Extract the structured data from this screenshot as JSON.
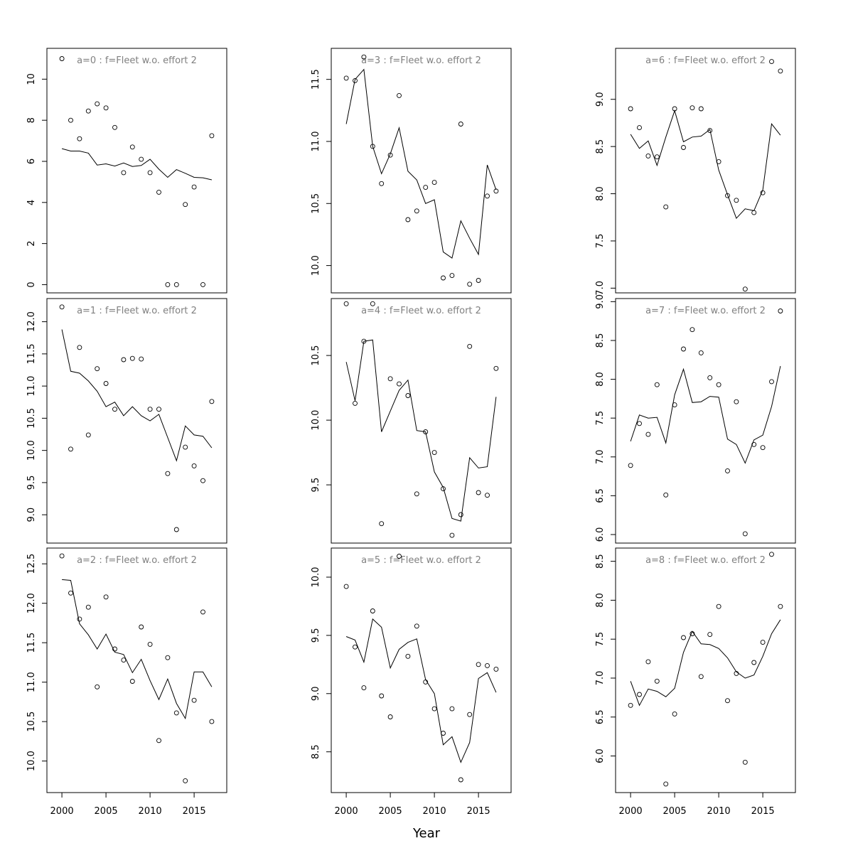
{
  "figure": {
    "xlabel": "Year"
  },
  "chart_data": [
    {
      "type": "scatter",
      "title": "a=0  :  f=Fleet w.o. effort 2",
      "xlim": [
        1998.3,
        2018.7
      ],
      "ylim": [
        -0.4,
        11.5
      ],
      "xticks": [
        2000,
        2005,
        2010,
        2015
      ],
      "yticks": [
        0,
        2,
        4,
        6,
        8,
        10
      ],
      "x": [
        2000,
        2001,
        2002,
        2003,
        2004,
        2005,
        2006,
        2007,
        2008,
        2009,
        2010,
        2011,
        2012,
        2013,
        2014,
        2015,
        2016,
        2017
      ],
      "series": [
        {
          "kind": "points",
          "values": [
            11.0,
            8.0,
            7.1,
            8.45,
            8.8,
            8.6,
            7.65,
            5.45,
            6.7,
            6.1,
            5.45,
            4.5,
            0.0,
            0.0,
            3.9,
            4.75,
            0.0,
            7.25
          ]
        },
        {
          "kind": "line",
          "values": [
            6.62,
            6.5,
            6.5,
            6.4,
            5.82,
            5.88,
            5.77,
            5.92,
            5.75,
            5.8,
            6.1,
            5.62,
            5.22,
            5.6,
            5.42,
            5.22,
            5.2,
            5.1
          ]
        }
      ]
    },
    {
      "type": "scatter",
      "title": "a=1  :  f=Fleet w.o. effort 2",
      "xlim": [
        1998.3,
        2018.7
      ],
      "ylim": [
        8.56,
        12.36
      ],
      "xticks": [
        2000,
        2005,
        2010,
        2015
      ],
      "yticks": [
        9.0,
        9.5,
        10.0,
        10.5,
        11.0,
        11.5,
        12.0
      ],
      "x": [
        2000,
        2001,
        2002,
        2003,
        2004,
        2005,
        2006,
        2007,
        2008,
        2009,
        2010,
        2011,
        2012,
        2013,
        2014,
        2015,
        2016,
        2017
      ],
      "series": [
        {
          "kind": "points",
          "values": [
            12.23,
            10.02,
            11.6,
            10.24,
            11.27,
            11.04,
            10.64,
            11.41,
            11.43,
            11.42,
            10.64,
            10.64,
            9.64,
            8.77,
            10.05,
            9.76,
            9.53,
            10.76
          ]
        },
        {
          "kind": "line",
          "values": [
            11.88,
            11.23,
            11.2,
            11.08,
            10.92,
            10.68,
            10.75,
            10.54,
            10.68,
            10.54,
            10.46,
            10.56,
            10.2,
            9.84,
            10.38,
            10.24,
            10.22,
            10.04
          ]
        }
      ]
    },
    {
      "type": "scatter",
      "title": "a=2  :  f=Fleet w.o. effort 2",
      "xlim": [
        1998.3,
        2018.7
      ],
      "ylim": [
        9.6,
        12.7
      ],
      "xticks": [
        2000,
        2005,
        2010,
        2015
      ],
      "yticks": [
        10.0,
        10.5,
        11.0,
        11.5,
        12.0,
        12.5
      ],
      "x": [
        2000,
        2001,
        2002,
        2003,
        2004,
        2005,
        2006,
        2007,
        2008,
        2009,
        2010,
        2011,
        2012,
        2013,
        2014,
        2015,
        2016,
        2017
      ],
      "series": [
        {
          "kind": "points",
          "values": [
            12.6,
            12.13,
            11.8,
            11.95,
            10.94,
            12.08,
            11.42,
            11.28,
            11.01,
            11.7,
            11.48,
            10.26,
            11.31,
            10.61,
            9.75,
            10.77,
            11.89,
            10.5
          ]
        },
        {
          "kind": "line",
          "values": [
            12.3,
            12.29,
            11.74,
            11.6,
            11.42,
            11.61,
            11.38,
            11.35,
            11.12,
            11.29,
            11.02,
            10.78,
            11.04,
            10.73,
            10.54,
            11.13,
            11.13,
            10.94
          ]
        }
      ]
    },
    {
      "type": "scatter",
      "title": "a=3  :  f=Fleet w.o. effort 2",
      "xlim": [
        1998.3,
        2018.7
      ],
      "ylim": [
        9.78,
        11.75
      ],
      "xticks": [
        2000,
        2005,
        2010,
        2015
      ],
      "yticks": [
        10.0,
        10.5,
        11.0,
        11.5
      ],
      "x": [
        2000,
        2001,
        2002,
        2003,
        2004,
        2005,
        2006,
        2007,
        2008,
        2009,
        2010,
        2011,
        2012,
        2013,
        2014,
        2015,
        2016,
        2017
      ],
      "series": [
        {
          "kind": "points",
          "values": [
            11.51,
            11.49,
            11.68,
            10.96,
            10.66,
            10.89,
            11.37,
            10.37,
            10.44,
            10.63,
            10.67,
            9.9,
            9.92,
            11.14,
            9.85,
            9.88,
            10.56,
            10.6
          ]
        },
        {
          "kind": "line",
          "values": [
            11.14,
            11.5,
            11.58,
            10.96,
            10.74,
            10.9,
            11.11,
            10.76,
            10.69,
            10.5,
            10.53,
            10.11,
            10.06,
            10.36,
            10.22,
            10.09,
            10.81,
            10.61
          ]
        }
      ]
    },
    {
      "type": "scatter",
      "title": "a=4  :  f=Fleet w.o. effort 2",
      "xlim": [
        1998.3,
        2018.7
      ],
      "ylim": [
        9.05,
        10.94
      ],
      "xticks": [
        2000,
        2005,
        2010,
        2015
      ],
      "yticks": [
        9.5,
        10.0,
        10.5
      ],
      "x": [
        2000,
        2001,
        2002,
        2003,
        2004,
        2005,
        2006,
        2007,
        2008,
        2009,
        2010,
        2011,
        2012,
        2013,
        2014,
        2015,
        2016,
        2017
      ],
      "series": [
        {
          "kind": "points",
          "values": [
            10.9,
            10.13,
            10.61,
            10.9,
            9.2,
            10.32,
            10.28,
            10.19,
            9.43,
            9.91,
            9.75,
            9.47,
            9.11,
            9.27,
            10.57,
            9.44,
            9.42,
            10.4
          ]
        },
        {
          "kind": "line",
          "values": [
            10.45,
            10.15,
            10.61,
            10.62,
            9.91,
            10.07,
            10.23,
            10.31,
            9.92,
            9.91,
            9.6,
            9.48,
            9.24,
            9.22,
            9.71,
            9.63,
            9.64,
            10.18
          ]
        }
      ]
    },
    {
      "type": "scatter",
      "title": "a=5  :  f=Fleet w.o. effort 2",
      "xlim": [
        1998.3,
        2018.7
      ],
      "ylim": [
        8.15,
        10.25
      ],
      "xticks": [
        2000,
        2005,
        2010,
        2015
      ],
      "yticks": [
        8.5,
        9.0,
        9.5,
        10.0
      ],
      "x": [
        2000,
        2001,
        2002,
        2003,
        2004,
        2005,
        2006,
        2007,
        2008,
        2009,
        2010,
        2011,
        2012,
        2013,
        2014,
        2015,
        2016,
        2017
      ],
      "series": [
        {
          "kind": "points",
          "values": [
            9.92,
            9.4,
            9.05,
            9.71,
            8.98,
            8.8,
            10.18,
            9.32,
            9.58,
            9.1,
            8.87,
            8.66,
            8.87,
            8.26,
            8.82,
            9.25,
            9.24,
            9.21
          ]
        },
        {
          "kind": "line",
          "values": [
            9.49,
            9.46,
            9.27,
            9.64,
            9.57,
            9.22,
            9.38,
            9.44,
            9.47,
            9.12,
            9.0,
            8.56,
            8.63,
            8.41,
            8.58,
            9.13,
            9.18,
            9.01
          ]
        }
      ]
    },
    {
      "type": "scatter",
      "title": "a=6  :  f=Fleet w.o. effort 2",
      "xlim": [
        1998.3,
        2018.7
      ],
      "ylim": [
        6.95,
        9.54
      ],
      "xticks": [
        2000,
        2005,
        2010,
        2015
      ],
      "yticks": [
        7.0,
        7.5,
        8.0,
        8.5,
        9.0
      ],
      "x": [
        2000,
        2001,
        2002,
        2003,
        2004,
        2005,
        2006,
        2007,
        2008,
        2009,
        2010,
        2011,
        2012,
        2013,
        2014,
        2015,
        2016,
        2017
      ],
      "series": [
        {
          "kind": "points",
          "values": [
            8.9,
            8.7,
            8.4,
            8.39,
            7.86,
            8.9,
            8.49,
            8.91,
            8.9,
            8.67,
            8.34,
            7.98,
            7.93,
            6.99,
            7.8,
            8.01,
            9.4,
            9.3
          ]
        },
        {
          "kind": "line",
          "values": [
            8.63,
            8.48,
            8.56,
            8.3,
            8.6,
            8.88,
            8.55,
            8.6,
            8.61,
            8.68,
            8.25,
            7.99,
            7.74,
            7.84,
            7.82,
            8.04,
            8.74,
            8.62
          ]
        }
      ]
    },
    {
      "type": "scatter",
      "title": "a=7  :  f=Fleet w.o. effort 2",
      "xlim": [
        1998.3,
        2018.7
      ],
      "ylim": [
        5.89,
        9.04
      ],
      "xticks": [
        2000,
        2005,
        2010,
        2015
      ],
      "yticks": [
        6.0,
        6.5,
        7.0,
        7.5,
        8.0,
        8.5,
        9.0
      ],
      "x": [
        2000,
        2001,
        2002,
        2003,
        2004,
        2005,
        2006,
        2007,
        2008,
        2009,
        2010,
        2011,
        2012,
        2013,
        2014,
        2015,
        2016,
        2017
      ],
      "series": [
        {
          "kind": "points",
          "values": [
            6.89,
            7.43,
            7.29,
            7.93,
            6.51,
            7.67,
            8.39,
            8.64,
            8.34,
            8.02,
            7.93,
            6.82,
            7.71,
            6.01,
            7.16,
            7.12,
            7.97,
            8.88
          ]
        },
        {
          "kind": "line",
          "values": [
            7.2,
            7.54,
            7.5,
            7.51,
            7.18,
            7.8,
            8.13,
            7.7,
            7.71,
            7.78,
            7.77,
            7.23,
            7.16,
            6.92,
            7.22,
            7.28,
            7.65,
            8.17
          ]
        }
      ]
    },
    {
      "type": "scatter",
      "title": "a=8  :  f=Fleet w.o. effort 2",
      "xlim": [
        1998.3,
        2018.7
      ],
      "ylim": [
        5.53,
        8.67
      ],
      "xticks": [
        2000,
        2005,
        2010,
        2015
      ],
      "yticks": [
        6.0,
        6.5,
        7.0,
        7.5,
        8.0,
        8.5
      ],
      "x": [
        2000,
        2001,
        2002,
        2003,
        2004,
        2005,
        2006,
        2007,
        2008,
        2009,
        2010,
        2011,
        2012,
        2013,
        2014,
        2015,
        2016,
        2017
      ],
      "series": [
        {
          "kind": "points",
          "values": [
            6.65,
            6.79,
            7.21,
            6.96,
            5.64,
            6.54,
            7.52,
            7.57,
            7.02,
            7.56,
            7.92,
            6.71,
            7.06,
            5.92,
            7.2,
            7.46,
            8.59,
            7.92
          ]
        },
        {
          "kind": "line",
          "values": [
            6.96,
            6.65,
            6.86,
            6.83,
            6.76,
            6.87,
            7.33,
            7.6,
            7.44,
            7.43,
            7.38,
            7.26,
            7.08,
            7.0,
            7.04,
            7.28,
            7.57,
            7.75
          ]
        }
      ]
    }
  ]
}
